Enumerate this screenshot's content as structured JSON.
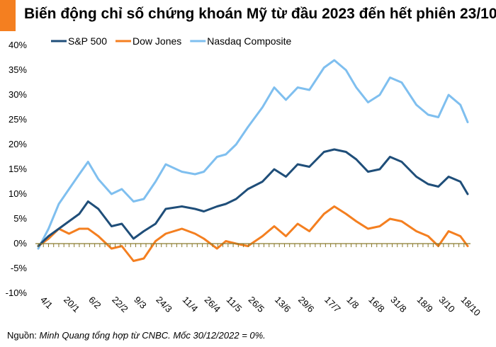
{
  "title": "Biến động chỉ số chứng khoán Mỹ từ đầu 2023 đến hết phiên 23/10",
  "source_label": "Nguồn:",
  "source_text": "Minh Quang tổng hợp từ CNBC. Mốc 30/12/2022 = 0%.",
  "colors": {
    "accent": "#f47f20"
  },
  "chart_data": {
    "type": "line",
    "title": "Biến động chỉ số chứng khoán Mỹ từ đầu 2023 đến hết phiên 23/10",
    "xlabel": "",
    "ylabel": "",
    "ylim": [
      -10,
      40
    ],
    "yticks": [
      -10,
      -5,
      0,
      5,
      10,
      15,
      20,
      25,
      30,
      35,
      40
    ],
    "ytick_labels": [
      "-10%",
      "-5%",
      "0%",
      "5%",
      "10%",
      "15%",
      "20%",
      "25%",
      "30%",
      "35%",
      "40%"
    ],
    "x": [
      "2023-01-03",
      "2023-01-10",
      "2023-01-17",
      "2023-01-24",
      "2023-01-31",
      "2023-02-06",
      "2023-02-13",
      "2023-02-22",
      "2023-03-01",
      "2023-03-09",
      "2023-03-16",
      "2023-03-24",
      "2023-03-31",
      "2023-04-11",
      "2023-04-20",
      "2023-04-26",
      "2023-05-05",
      "2023-05-11",
      "2023-05-18",
      "2023-05-26",
      "2023-06-05",
      "2023-06-13",
      "2023-06-21",
      "2023-06-29",
      "2023-07-07",
      "2023-07-17",
      "2023-07-24",
      "2023-08-01",
      "2023-08-08",
      "2023-08-16",
      "2023-08-24",
      "2023-08-31",
      "2023-09-08",
      "2023-09-18",
      "2023-09-26",
      "2023-10-03",
      "2023-10-10",
      "2023-10-18",
      "2023-10-23"
    ],
    "xtick_labels": [
      "4/1",
      "20/1",
      "6/2",
      "22/2",
      "9/3",
      "24/3",
      "11/4",
      "26/4",
      "11/5",
      "26/5",
      "13/6",
      "29/6",
      "17/7",
      "1/8",
      "16/8",
      "31/8",
      "18/9",
      "3/10",
      "18/10"
    ],
    "xtick_dates": [
      "2023-01-04",
      "2023-01-20",
      "2023-02-06",
      "2023-02-22",
      "2023-03-09",
      "2023-03-24",
      "2023-04-11",
      "2023-04-26",
      "2023-05-11",
      "2023-05-26",
      "2023-06-13",
      "2023-06-29",
      "2023-07-17",
      "2023-08-01",
      "2023-08-16",
      "2023-08-31",
      "2023-09-18",
      "2023-10-03",
      "2023-10-18"
    ],
    "legend_position": "top-left",
    "grid": false,
    "series": [
      {
        "name": "S&P 500",
        "color": "#1f4e79",
        "values": [
          -0.5,
          1.5,
          3.0,
          4.5,
          6.0,
          8.5,
          7.0,
          3.5,
          4.0,
          1.0,
          2.5,
          4.0,
          7.0,
          7.5,
          7.0,
          6.5,
          7.5,
          8.0,
          9.0,
          11.0,
          12.5,
          15.0,
          13.5,
          16.0,
          15.5,
          18.5,
          19.0,
          18.5,
          17.0,
          14.5,
          15.0,
          17.5,
          16.5,
          13.5,
          12.0,
          11.5,
          13.5,
          12.5,
          10.0
        ]
      },
      {
        "name": "Dow Jones",
        "color": "#f47f20",
        "values": [
          -0.5,
          1.0,
          3.0,
          2.0,
          3.0,
          3.0,
          1.5,
          -1.0,
          -0.5,
          -3.5,
          -3.0,
          0.5,
          2.0,
          3.0,
          2.0,
          1.0,
          -1.0,
          0.5,
          0.0,
          -0.5,
          1.5,
          3.5,
          1.5,
          4.0,
          2.5,
          6.0,
          7.5,
          6.0,
          4.5,
          3.0,
          3.5,
          5.0,
          4.5,
          2.5,
          1.5,
          -0.5,
          2.5,
          1.5,
          -0.5
        ]
      },
      {
        "name": "Nasdaq Composite",
        "color": "#7fbfef",
        "values": [
          -1.0,
          3.0,
          8.0,
          11.0,
          14.0,
          16.5,
          13.0,
          10.0,
          11.0,
          8.5,
          9.0,
          12.5,
          16.0,
          14.5,
          14.0,
          14.5,
          17.5,
          18.0,
          20.0,
          23.5,
          27.5,
          31.5,
          29.0,
          31.5,
          31.0,
          35.5,
          37.0,
          35.0,
          31.5,
          28.5,
          30.0,
          33.5,
          32.5,
          28.0,
          26.0,
          25.5,
          30.0,
          28.0,
          24.5
        ]
      }
    ]
  }
}
